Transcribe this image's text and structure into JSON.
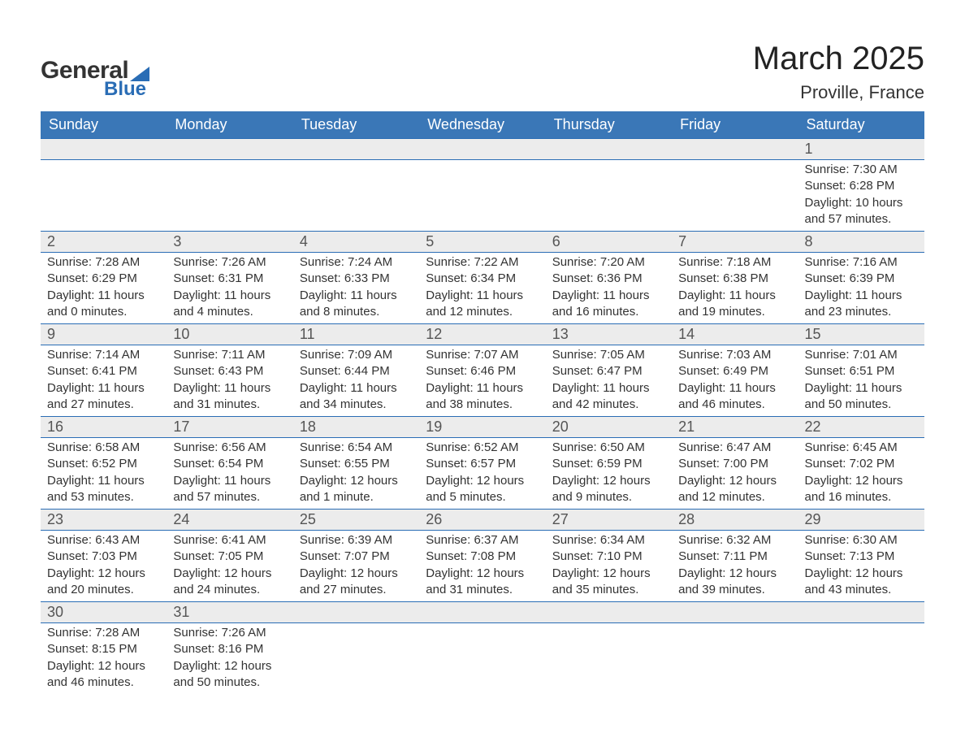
{
  "logo": {
    "text1": "General",
    "text2": "Blue"
  },
  "title": "March 2025",
  "location": "Proville, France",
  "colors": {
    "header_bg": "#3a77b7",
    "header_text": "#ffffff",
    "row_border": "#2a6db5",
    "daynum_bg": "#ececec",
    "text": "#333333",
    "logo_accent": "#2a6db5"
  },
  "fonts": {
    "title_size_pt": 30,
    "location_size_pt": 17,
    "header_size_pt": 14,
    "body_size_pt": 11
  },
  "day_headers": [
    "Sunday",
    "Monday",
    "Tuesday",
    "Wednesday",
    "Thursday",
    "Friday",
    "Saturday"
  ],
  "weeks": [
    [
      null,
      null,
      null,
      null,
      null,
      null,
      {
        "n": "1",
        "sunrise": "Sunrise: 7:30 AM",
        "sunset": "Sunset: 6:28 PM",
        "day1": "Daylight: 10 hours",
        "day2": "and 57 minutes."
      }
    ],
    [
      {
        "n": "2",
        "sunrise": "Sunrise: 7:28 AM",
        "sunset": "Sunset: 6:29 PM",
        "day1": "Daylight: 11 hours",
        "day2": "and 0 minutes."
      },
      {
        "n": "3",
        "sunrise": "Sunrise: 7:26 AM",
        "sunset": "Sunset: 6:31 PM",
        "day1": "Daylight: 11 hours",
        "day2": "and 4 minutes."
      },
      {
        "n": "4",
        "sunrise": "Sunrise: 7:24 AM",
        "sunset": "Sunset: 6:33 PM",
        "day1": "Daylight: 11 hours",
        "day2": "and 8 minutes."
      },
      {
        "n": "5",
        "sunrise": "Sunrise: 7:22 AM",
        "sunset": "Sunset: 6:34 PM",
        "day1": "Daylight: 11 hours",
        "day2": "and 12 minutes."
      },
      {
        "n": "6",
        "sunrise": "Sunrise: 7:20 AM",
        "sunset": "Sunset: 6:36 PM",
        "day1": "Daylight: 11 hours",
        "day2": "and 16 minutes."
      },
      {
        "n": "7",
        "sunrise": "Sunrise: 7:18 AM",
        "sunset": "Sunset: 6:38 PM",
        "day1": "Daylight: 11 hours",
        "day2": "and 19 minutes."
      },
      {
        "n": "8",
        "sunrise": "Sunrise: 7:16 AM",
        "sunset": "Sunset: 6:39 PM",
        "day1": "Daylight: 11 hours",
        "day2": "and 23 minutes."
      }
    ],
    [
      {
        "n": "9",
        "sunrise": "Sunrise: 7:14 AM",
        "sunset": "Sunset: 6:41 PM",
        "day1": "Daylight: 11 hours",
        "day2": "and 27 minutes."
      },
      {
        "n": "10",
        "sunrise": "Sunrise: 7:11 AM",
        "sunset": "Sunset: 6:43 PM",
        "day1": "Daylight: 11 hours",
        "day2": "and 31 minutes."
      },
      {
        "n": "11",
        "sunrise": "Sunrise: 7:09 AM",
        "sunset": "Sunset: 6:44 PM",
        "day1": "Daylight: 11 hours",
        "day2": "and 34 minutes."
      },
      {
        "n": "12",
        "sunrise": "Sunrise: 7:07 AM",
        "sunset": "Sunset: 6:46 PM",
        "day1": "Daylight: 11 hours",
        "day2": "and 38 minutes."
      },
      {
        "n": "13",
        "sunrise": "Sunrise: 7:05 AM",
        "sunset": "Sunset: 6:47 PM",
        "day1": "Daylight: 11 hours",
        "day2": "and 42 minutes."
      },
      {
        "n": "14",
        "sunrise": "Sunrise: 7:03 AM",
        "sunset": "Sunset: 6:49 PM",
        "day1": "Daylight: 11 hours",
        "day2": "and 46 minutes."
      },
      {
        "n": "15",
        "sunrise": "Sunrise: 7:01 AM",
        "sunset": "Sunset: 6:51 PM",
        "day1": "Daylight: 11 hours",
        "day2": "and 50 minutes."
      }
    ],
    [
      {
        "n": "16",
        "sunrise": "Sunrise: 6:58 AM",
        "sunset": "Sunset: 6:52 PM",
        "day1": "Daylight: 11 hours",
        "day2": "and 53 minutes."
      },
      {
        "n": "17",
        "sunrise": "Sunrise: 6:56 AM",
        "sunset": "Sunset: 6:54 PM",
        "day1": "Daylight: 11 hours",
        "day2": "and 57 minutes."
      },
      {
        "n": "18",
        "sunrise": "Sunrise: 6:54 AM",
        "sunset": "Sunset: 6:55 PM",
        "day1": "Daylight: 12 hours",
        "day2": "and 1 minute."
      },
      {
        "n": "19",
        "sunrise": "Sunrise: 6:52 AM",
        "sunset": "Sunset: 6:57 PM",
        "day1": "Daylight: 12 hours",
        "day2": "and 5 minutes."
      },
      {
        "n": "20",
        "sunrise": "Sunrise: 6:50 AM",
        "sunset": "Sunset: 6:59 PM",
        "day1": "Daylight: 12 hours",
        "day2": "and 9 minutes."
      },
      {
        "n": "21",
        "sunrise": "Sunrise: 6:47 AM",
        "sunset": "Sunset: 7:00 PM",
        "day1": "Daylight: 12 hours",
        "day2": "and 12 minutes."
      },
      {
        "n": "22",
        "sunrise": "Sunrise: 6:45 AM",
        "sunset": "Sunset: 7:02 PM",
        "day1": "Daylight: 12 hours",
        "day2": "and 16 minutes."
      }
    ],
    [
      {
        "n": "23",
        "sunrise": "Sunrise: 6:43 AM",
        "sunset": "Sunset: 7:03 PM",
        "day1": "Daylight: 12 hours",
        "day2": "and 20 minutes."
      },
      {
        "n": "24",
        "sunrise": "Sunrise: 6:41 AM",
        "sunset": "Sunset: 7:05 PM",
        "day1": "Daylight: 12 hours",
        "day2": "and 24 minutes."
      },
      {
        "n": "25",
        "sunrise": "Sunrise: 6:39 AM",
        "sunset": "Sunset: 7:07 PM",
        "day1": "Daylight: 12 hours",
        "day2": "and 27 minutes."
      },
      {
        "n": "26",
        "sunrise": "Sunrise: 6:37 AM",
        "sunset": "Sunset: 7:08 PM",
        "day1": "Daylight: 12 hours",
        "day2": "and 31 minutes."
      },
      {
        "n": "27",
        "sunrise": "Sunrise: 6:34 AM",
        "sunset": "Sunset: 7:10 PM",
        "day1": "Daylight: 12 hours",
        "day2": "and 35 minutes."
      },
      {
        "n": "28",
        "sunrise": "Sunrise: 6:32 AM",
        "sunset": "Sunset: 7:11 PM",
        "day1": "Daylight: 12 hours",
        "day2": "and 39 minutes."
      },
      {
        "n": "29",
        "sunrise": "Sunrise: 6:30 AM",
        "sunset": "Sunset: 7:13 PM",
        "day1": "Daylight: 12 hours",
        "day2": "and 43 minutes."
      }
    ],
    [
      {
        "n": "30",
        "sunrise": "Sunrise: 7:28 AM",
        "sunset": "Sunset: 8:15 PM",
        "day1": "Daylight: 12 hours",
        "day2": "and 46 minutes."
      },
      {
        "n": "31",
        "sunrise": "Sunrise: 7:26 AM",
        "sunset": "Sunset: 8:16 PM",
        "day1": "Daylight: 12 hours",
        "day2": "and 50 minutes."
      },
      null,
      null,
      null,
      null,
      null
    ]
  ]
}
